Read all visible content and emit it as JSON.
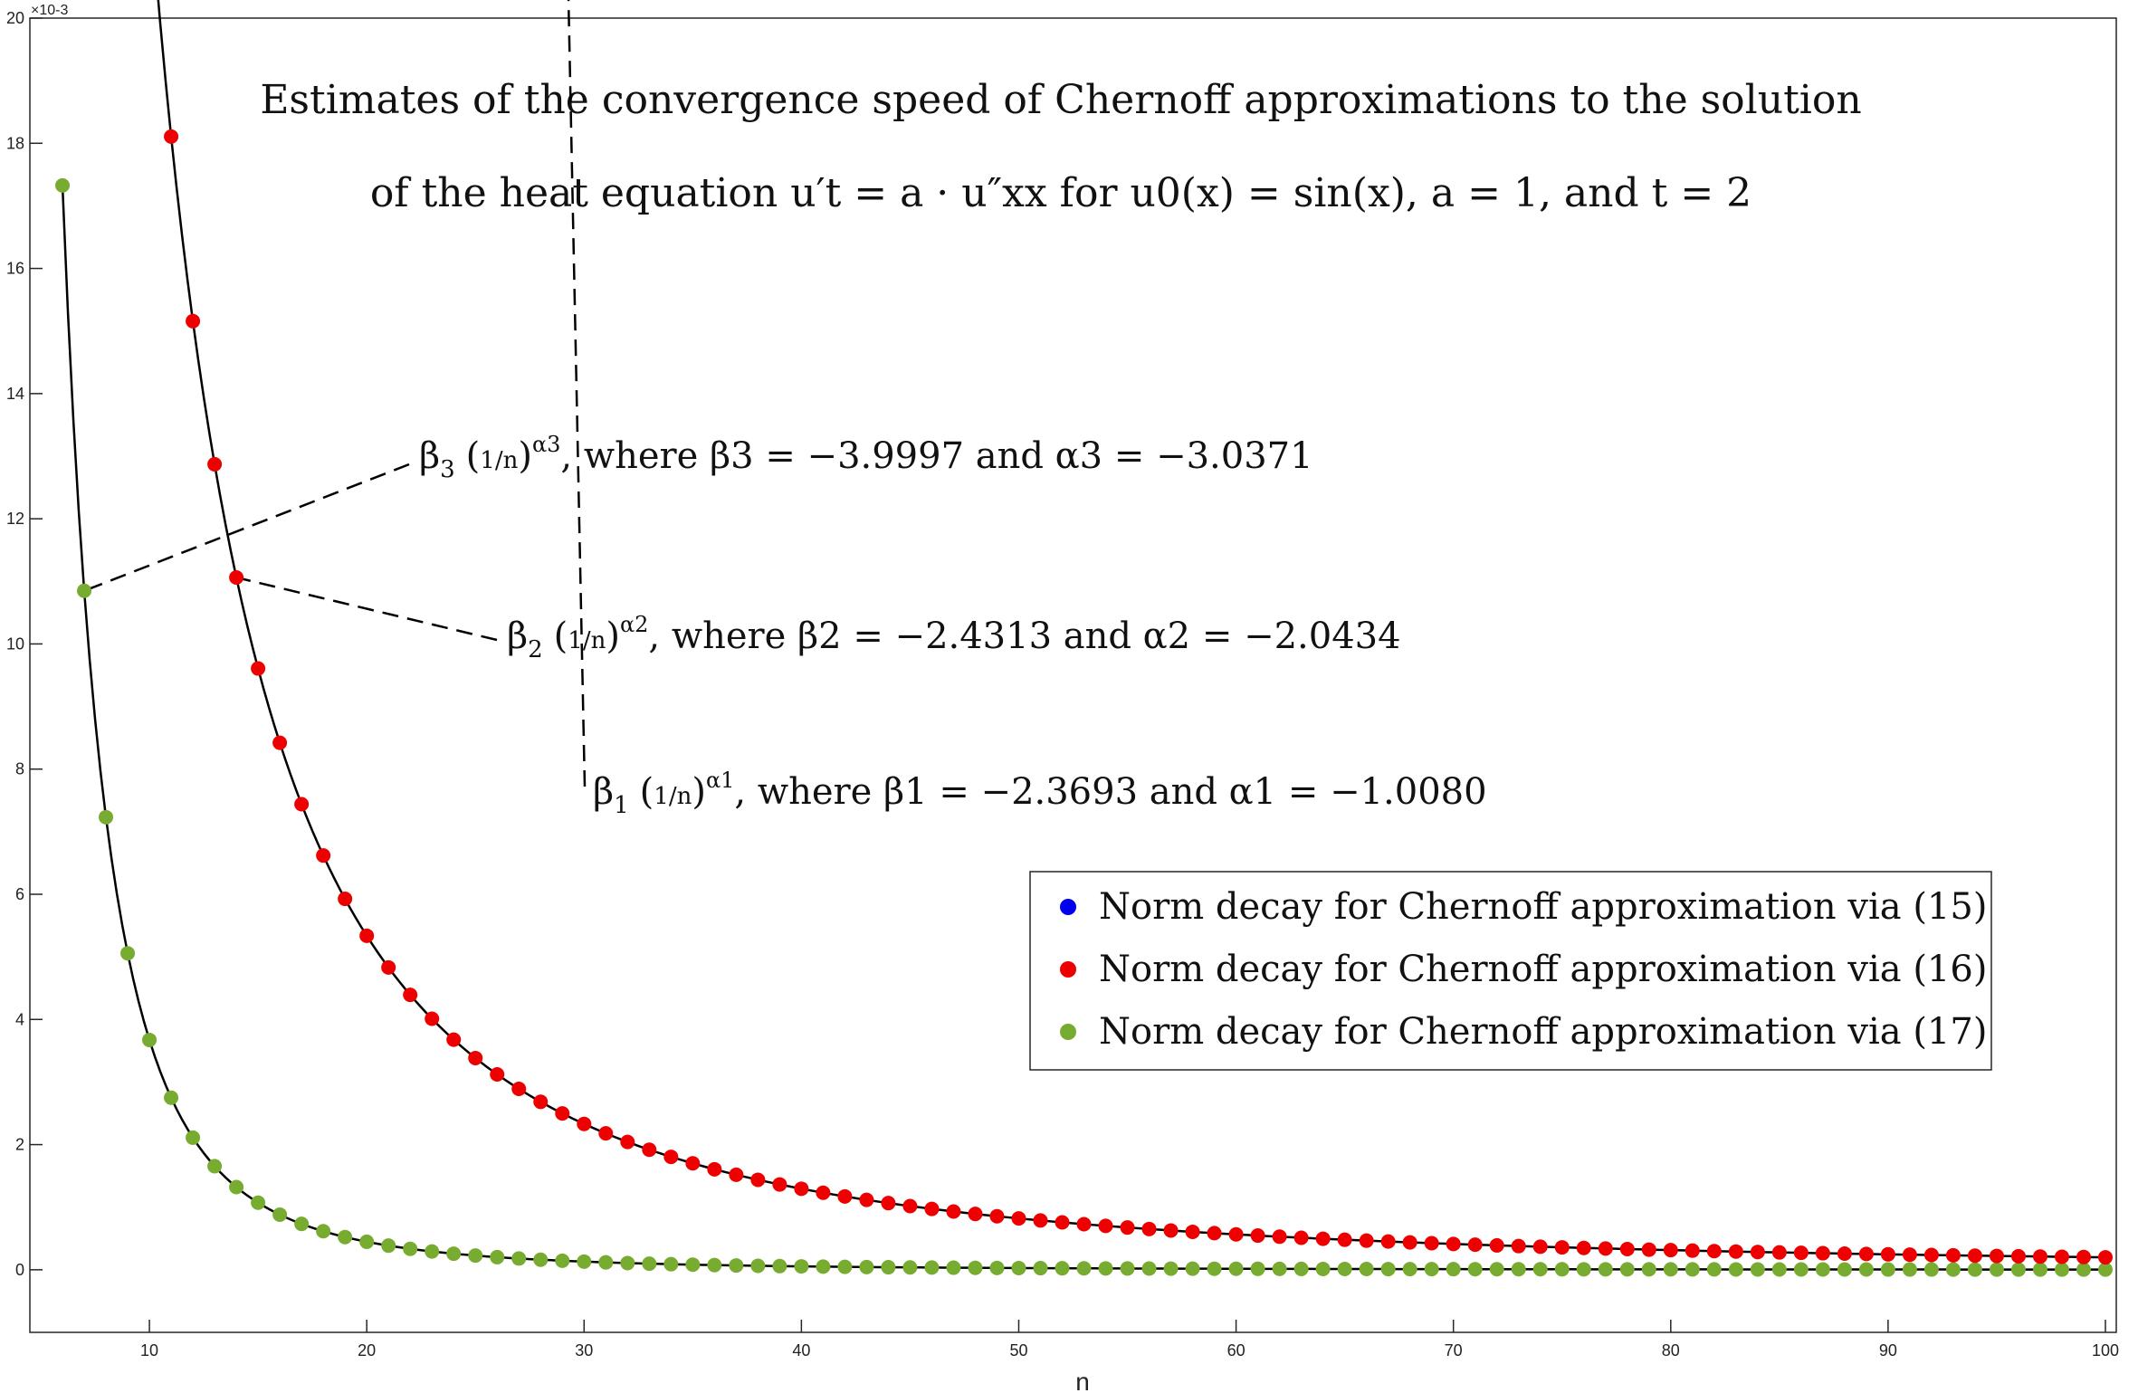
{
  "chart_data": {
    "type": "scatter",
    "title_line1": "Estimates of the convergence speed of Chernoff approximations to the solution",
    "title_line2": "of the heat equation u′t = a · u″xx for u0(x) = sin(x), a = 1, and t = 2",
    "xlabel": "n",
    "ylabel": "",
    "y_exponent_label": "×10-3",
    "xlim": [
      4.5,
      100.5
    ],
    "ylim": [
      -1,
      20
    ],
    "x_ticks": [
      10,
      20,
      30,
      40,
      50,
      60,
      70,
      80,
      90,
      100
    ],
    "y_ticks": [
      0,
      2,
      4,
      6,
      8,
      10,
      12,
      14,
      16,
      18,
      20
    ],
    "n_start": 6,
    "n_end": 100,
    "grid": false,
    "legend_position": "center-right",
    "series": [
      {
        "name": "Norm decay for Chernoff approximation via (15)",
        "color": "#0000ee",
        "beta": 2.3693,
        "alpha": 1.008,
        "fit_label": "β1 (1/n)^α1, where β1 = −2.3693 and α1 = −1.0080"
      },
      {
        "name": "Norm decay for Chernoff approximation via (16)",
        "color": "#ee0000",
        "beta": 2.4313,
        "alpha": 2.0434,
        "fit_label": "β2 (1/n)^α2, where β2 = −2.4313 and α2 = −2.0434"
      },
      {
        "name": "Norm decay for Chernoff approximation via (17)",
        "color": "#77ac30",
        "beta": 3.9997,
        "alpha": 3.0371,
        "fit_label": "β3 (1/n)^α3, where β3 = −3.9997 and α3 = −3.0371"
      }
    ]
  },
  "annotations": {
    "a3": {
      "pre": "β",
      "sub": "3",
      "frac": "1/n",
      "exp": "α3",
      "rest": ", where β3 = −3.9997 and α3 = −3.0371"
    },
    "a2": {
      "pre": "β",
      "sub": "2",
      "frac": "1/n",
      "exp": "α2",
      "rest": ", where β2 = −2.4313 and α2 = −2.0434"
    },
    "a1": {
      "pre": "β",
      "sub": "1",
      "frac": "1/n",
      "exp": "α1",
      "rest": ", where β1 = −2.3693 and α1 = −1.0080"
    }
  }
}
